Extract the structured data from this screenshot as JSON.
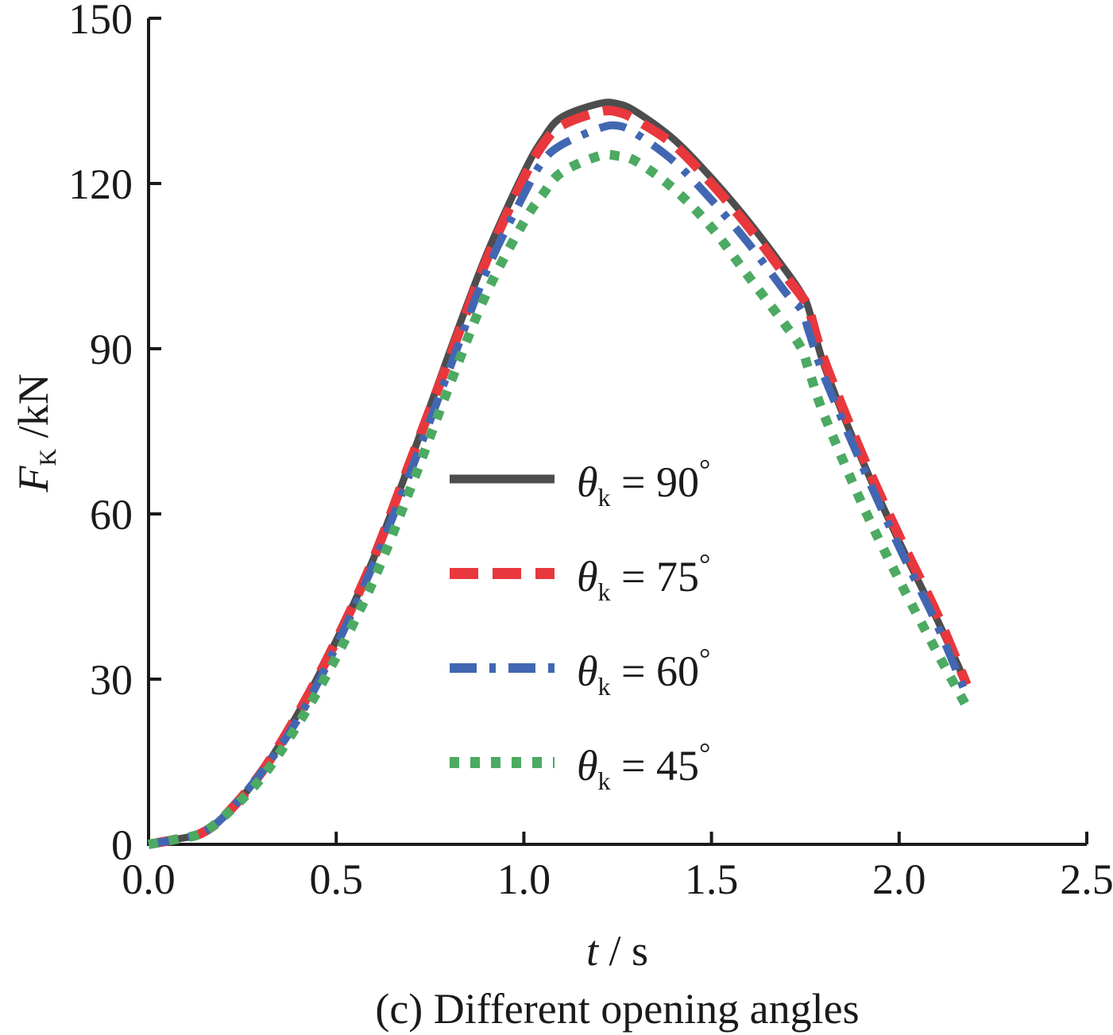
{
  "chart_data": {
    "type": "line",
    "caption": "(c) Different opening angles",
    "xlabel": {
      "var": "t",
      "sep": " / ",
      "unit": "s"
    },
    "ylabel": {
      "var": "F",
      "sub": "K",
      "sep": " /",
      "unit": "kN"
    },
    "xlim": [
      0,
      2.5
    ],
    "ylim": [
      0,
      150
    ],
    "x_ticks": [
      0.0,
      0.5,
      1.0,
      1.5,
      2.0,
      2.5
    ],
    "x_tick_labels": [
      "0.0",
      "0.5",
      "1.0",
      "1.5",
      "2.0",
      "2.5"
    ],
    "y_ticks": [
      0,
      30,
      60,
      90,
      120,
      150
    ],
    "y_tick_labels": [
      "0",
      "30",
      "60",
      "90",
      "120",
      "150"
    ],
    "grid": false,
    "legend_position": "center-right",
    "series": [
      {
        "name": "θk = 90°",
        "symbol": "θ",
        "sub": "k",
        "eq": " = ",
        "value": "90",
        "deg": "°",
        "color": "#4d4d4d",
        "style": "solid",
        "x": [
          0.0,
          0.08,
          0.14,
          0.2,
          0.3,
          0.4,
          0.5,
          0.6,
          0.7,
          0.8,
          0.9,
          1.0,
          1.05,
          1.1,
          1.2,
          1.25,
          1.3,
          1.4,
          1.5,
          1.6,
          1.7,
          1.74,
          1.76,
          1.8,
          1.9,
          2.0,
          2.1,
          2.18
        ],
        "y": [
          0,
          1,
          2,
          5,
          13,
          24,
          37,
          52,
          70,
          89,
          107,
          122,
          128,
          132,
          134.5,
          134.5,
          133,
          128,
          121,
          113,
          104,
          100,
          97,
          87,
          70,
          55,
          41,
          29
        ]
      },
      {
        "name": "θk = 75°",
        "symbol": "θ",
        "sub": "k",
        "eq": " = ",
        "value": "75",
        "deg": "°",
        "color": "#e8383d",
        "style": "dashed",
        "x": [
          0.0,
          0.08,
          0.14,
          0.2,
          0.3,
          0.4,
          0.5,
          0.6,
          0.7,
          0.8,
          0.9,
          1.0,
          1.05,
          1.1,
          1.2,
          1.25,
          1.3,
          1.4,
          1.5,
          1.6,
          1.7,
          1.74,
          1.76,
          1.8,
          1.9,
          2.0,
          2.1,
          2.18
        ],
        "y": [
          0,
          1,
          2,
          5,
          13,
          24,
          37,
          52,
          70,
          88,
          106,
          121,
          127,
          130.5,
          133,
          133,
          131.5,
          127,
          120,
          112,
          103,
          99.5,
          97,
          88,
          71,
          56,
          42,
          29
        ]
      },
      {
        "name": "θk = 60°",
        "symbol": "θ",
        "sub": "k",
        "eq": " = ",
        "value": "60",
        "deg": "°",
        "color": "#4267b2",
        "style": "dashdot",
        "x": [
          0.0,
          0.08,
          0.14,
          0.2,
          0.3,
          0.4,
          0.5,
          0.6,
          0.7,
          0.8,
          0.9,
          1.0,
          1.05,
          1.1,
          1.2,
          1.25,
          1.3,
          1.4,
          1.5,
          1.6,
          1.7,
          1.74,
          1.76,
          1.8,
          1.9,
          2.0,
          2.1,
          2.18
        ],
        "y": [
          0,
          1,
          2,
          5,
          13,
          23,
          36,
          51,
          68,
          86,
          104,
          118,
          124,
          127,
          130,
          130.5,
          129,
          124,
          117,
          109,
          100,
          97,
          93,
          85,
          69,
          54,
          40,
          27
        ]
      },
      {
        "name": "θk = 45°",
        "symbol": "θ",
        "sub": "k",
        "eq": " = ",
        "value": "45",
        "deg": "°",
        "color": "#4caa62",
        "style": "dotted",
        "x": [
          0.0,
          0.08,
          0.14,
          0.2,
          0.3,
          0.4,
          0.5,
          0.6,
          0.7,
          0.8,
          0.9,
          1.0,
          1.05,
          1.1,
          1.2,
          1.25,
          1.3,
          1.4,
          1.5,
          1.6,
          1.7,
          1.74,
          1.76,
          1.8,
          1.9,
          2.0,
          2.1,
          2.18
        ],
        "y": [
          0,
          1,
          2,
          5,
          12,
          22,
          34,
          48,
          65,
          83,
          100,
          113,
          118,
          122,
          125,
          125,
          124,
          119,
          112,
          103,
          94,
          90,
          86,
          78,
          62,
          48,
          35,
          25
        ]
      }
    ]
  }
}
